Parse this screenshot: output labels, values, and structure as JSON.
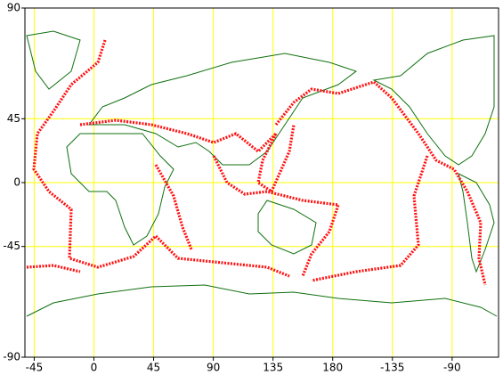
{
  "chart_data": {
    "type": "map",
    "xlim": [
      -52,
      305
    ],
    "ylim": [
      -90,
      90
    ],
    "xticks": [
      -45,
      0,
      45,
      90,
      135,
      180,
      {
        "value": 225,
        "label": "-135"
      },
      {
        "value": 270,
        "label": "-90"
      }
    ],
    "yticks": [
      90,
      45,
      0,
      -45,
      -90
    ],
    "grid": true,
    "grid_color": "#ffff00"
  }
}
